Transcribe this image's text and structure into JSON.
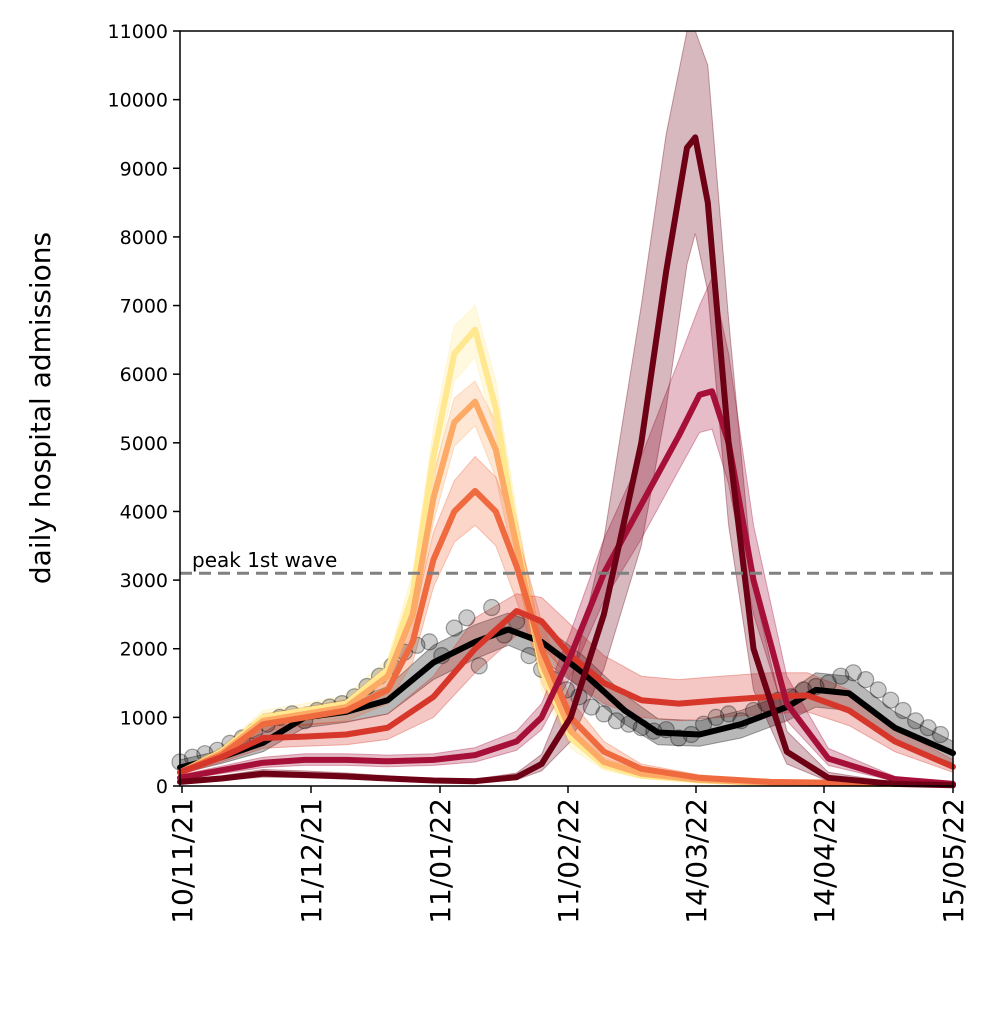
{
  "chart_data": {
    "type": "line",
    "title": "",
    "xlabel": "",
    "ylabel": "daily hospital admissions",
    "ylim": [
      0,
      11000
    ],
    "xlim": [
      "2021-11-10",
      "2022-05-15"
    ],
    "xticks": [
      "10/11/21",
      "11/12/21",
      "11/01/22",
      "11/02/22",
      "14/03/22",
      "14/04/22",
      "15/05/22"
    ],
    "yticks": [
      "0",
      "1000",
      "2000",
      "3000",
      "4000",
      "5000",
      "6000",
      "7000",
      "8000",
      "9000",
      "10000",
      "11000"
    ],
    "grid": false,
    "reference_line": {
      "label": "peak 1st wave",
      "value": 3100,
      "color": "#808080",
      "style": "dashed"
    },
    "observed_points": {
      "color": "#000000",
      "x": [
        "2021-11-10",
        "2021-11-13",
        "2021-11-16",
        "2021-11-19",
        "2021-11-22",
        "2021-11-25",
        "2021-11-28",
        "2021-12-01",
        "2021-12-04",
        "2021-12-07",
        "2021-12-10",
        "2021-12-13",
        "2021-12-16",
        "2021-12-19",
        "2021-12-22",
        "2021-12-25",
        "2021-12-28",
        "2021-12-31",
        "2022-01-03",
        "2022-01-06",
        "2022-01-09",
        "2022-01-12",
        "2022-01-15",
        "2022-01-18",
        "2022-01-21",
        "2022-01-24",
        "2022-01-27",
        "2022-01-30",
        "2022-02-02",
        "2022-02-05",
        "2022-02-08",
        "2022-02-11",
        "2022-02-14",
        "2022-02-17",
        "2022-02-20",
        "2022-02-23",
        "2022-02-26",
        "2022-03-01",
        "2022-03-04",
        "2022-03-07",
        "2022-03-10",
        "2022-03-13",
        "2022-03-16",
        "2022-03-19",
        "2022-03-22",
        "2022-03-25",
        "2022-03-28",
        "2022-03-31",
        "2022-04-03",
        "2022-04-06",
        "2022-04-09",
        "2022-04-12",
        "2022-04-15",
        "2022-04-18",
        "2022-04-21",
        "2022-04-24",
        "2022-04-27",
        "2022-04-30",
        "2022-05-03",
        "2022-05-06",
        "2022-05-09",
        "2022-05-12"
      ],
      "y": [
        350,
        420,
        470,
        520,
        620,
        700,
        800,
        900,
        1000,
        1050,
        950,
        1100,
        1150,
        1200,
        1300,
        1450,
        1600,
        1750,
        1950,
        2050,
        2100,
        1900,
        2300,
        2450,
        1750,
        2600,
        2200,
        2400,
        1900,
        1700,
        1550,
        1400,
        1300,
        1150,
        1050,
        950,
        900,
        850,
        800,
        820,
        700,
        750,
        900,
        1000,
        1050,
        950,
        1100,
        1200,
        1250,
        1300,
        1400,
        1450,
        1500,
        1600,
        1650,
        1550,
        1400,
        1250,
        1100,
        950,
        850,
        750
      ]
    },
    "series": [
      {
        "color": "#000000",
        "x": [
          "2021-11-10",
          "2021-11-20",
          "2021-11-30",
          "2021-12-10",
          "2021-12-20",
          "2021-12-30",
          "2022-01-10",
          "2022-01-20",
          "2022-01-28",
          "2022-02-05",
          "2022-02-15",
          "2022-02-25",
          "2022-03-05",
          "2022-03-15",
          "2022-03-25",
          "2022-04-05",
          "2022-04-12",
          "2022-04-20",
          "2022-05-01",
          "2022-05-15"
        ],
        "values": [
          270,
          420,
          630,
          1000,
          1080,
          1250,
          1800,
          2100,
          2280,
          2100,
          1650,
          1100,
          780,
          750,
          900,
          1150,
          1400,
          1350,
          850,
          480
        ]
      },
      {
        "color": "#ffe88f",
        "x": [
          "2021-11-10",
          "2021-11-20",
          "2021-11-30",
          "2021-12-10",
          "2021-12-20",
          "2021-12-30",
          "2022-01-05",
          "2022-01-10",
          "2022-01-15",
          "2022-01-20",
          "2022-01-25",
          "2022-01-30",
          "2022-02-05",
          "2022-02-12",
          "2022-02-20",
          "2022-03-01",
          "2022-03-15",
          "2022-04-01",
          "2022-05-15"
        ],
        "values": [
          200,
          500,
          1000,
          1100,
          1200,
          1700,
          2800,
          4800,
          6300,
          6650,
          5500,
          3600,
          1700,
          700,
          300,
          150,
          80,
          40,
          20
        ]
      },
      {
        "color": "#fcaa65",
        "x": [
          "2021-11-10",
          "2021-11-20",
          "2021-11-30",
          "2021-12-10",
          "2021-12-20",
          "2021-12-30",
          "2022-01-05",
          "2022-01-10",
          "2022-01-15",
          "2022-01-20",
          "2022-01-25",
          "2022-01-30",
          "2022-02-05",
          "2022-02-12",
          "2022-02-20",
          "2022-03-01",
          "2022-03-15",
          "2022-04-01",
          "2022-05-15"
        ],
        "values": [
          200,
          480,
          950,
          1050,
          1150,
          1600,
          2500,
          4200,
          5300,
          5600,
          4900,
          3500,
          1800,
          800,
          350,
          180,
          90,
          50,
          20
        ]
      },
      {
        "color": "#ef6a3e",
        "x": [
          "2021-11-10",
          "2021-11-20",
          "2021-11-30",
          "2021-12-10",
          "2021-12-20",
          "2021-12-30",
          "2022-01-05",
          "2022-01-10",
          "2022-01-15",
          "2022-01-20",
          "2022-01-25",
          "2022-01-30",
          "2022-02-05",
          "2022-02-12",
          "2022-02-20",
          "2022-03-01",
          "2022-03-15",
          "2022-04-01",
          "2022-05-15"
        ],
        "values": [
          200,
          450,
          900,
          1000,
          1100,
          1400,
          2100,
          3300,
          4000,
          4300,
          4000,
          3200,
          2000,
          1000,
          500,
          250,
          120,
          60,
          25
        ]
      },
      {
        "color": "#d7372b",
        "x": [
          "2021-11-10",
          "2021-11-20",
          "2021-11-30",
          "2021-12-10",
          "2021-12-20",
          "2021-12-30",
          "2022-01-10",
          "2022-01-20",
          "2022-01-30",
          "2022-02-05",
          "2022-02-12",
          "2022-02-20",
          "2022-03-01",
          "2022-03-10",
          "2022-03-20",
          "2022-04-01",
          "2022-04-10",
          "2022-04-20",
          "2022-05-01",
          "2022-05-15"
        ],
        "values": [
          200,
          420,
          700,
          720,
          750,
          850,
          1300,
          2000,
          2550,
          2400,
          1900,
          1500,
          1250,
          1200,
          1250,
          1300,
          1320,
          1100,
          650,
          280
        ]
      },
      {
        "color": "#a50f38",
        "x": [
          "2021-11-10",
          "2021-11-20",
          "2021-11-30",
          "2021-12-10",
          "2021-12-20",
          "2021-12-30",
          "2022-01-10",
          "2022-01-20",
          "2022-01-30",
          "2022-02-05",
          "2022-02-12",
          "2022-02-20",
          "2022-03-01",
          "2022-03-10",
          "2022-03-15",
          "2022-03-18",
          "2022-03-22",
          "2022-03-28",
          "2022-04-05",
          "2022-04-15",
          "2022-05-01",
          "2022-05-15"
        ],
        "values": [
          120,
          230,
          340,
          380,
          380,
          360,
          380,
          450,
          650,
          1000,
          1900,
          3100,
          4100,
          5100,
          5700,
          5750,
          5000,
          3000,
          1200,
          400,
          100,
          30
        ]
      },
      {
        "color": "#6d0014",
        "x": [
          "2021-11-10",
          "2021-11-20",
          "2021-11-30",
          "2021-12-10",
          "2021-12-20",
          "2021-12-30",
          "2022-01-10",
          "2022-01-20",
          "2022-01-30",
          "2022-02-05",
          "2022-02-12",
          "2022-02-20",
          "2022-03-01",
          "2022-03-07",
          "2022-03-12",
          "2022-03-14",
          "2022-03-17",
          "2022-03-22",
          "2022-03-28",
          "2022-04-05",
          "2022-04-15",
          "2022-05-01",
          "2022-05-15"
        ],
        "values": [
          60,
          110,
          180,
          160,
          140,
          110,
          80,
          70,
          130,
          320,
          1000,
          2500,
          5000,
          7500,
          9300,
          9450,
          8500,
          5000,
          2000,
          500,
          120,
          30,
          10
        ]
      }
    ],
    "bands": [
      {
        "color": "#000000",
        "x": [
          "2021-11-10",
          "2021-11-20",
          "2021-11-30",
          "2021-12-10",
          "2021-12-20",
          "2021-12-30",
          "2022-01-10",
          "2022-01-20",
          "2022-01-28",
          "2022-02-05",
          "2022-02-15",
          "2022-02-25",
          "2022-03-05",
          "2022-03-15",
          "2022-03-25",
          "2022-04-05",
          "2022-04-12",
          "2022-04-20",
          "2022-05-01",
          "2022-05-15"
        ],
        "lower": [
          180,
          330,
          500,
          850,
          930,
          1050,
          1550,
          1850,
          2050,
          1850,
          1400,
          900,
          600,
          580,
          700,
          950,
          1150,
          1100,
          650,
          330
        ],
        "upper": [
          380,
          520,
          770,
          1150,
          1230,
          1450,
          2050,
          2350,
          2520,
          2350,
          1900,
          1330,
          980,
          950,
          1100,
          1350,
          1650,
          1600,
          1080,
          650
        ]
      },
      {
        "color": "#ffe88f",
        "x": [
          "2021-11-10",
          "2021-11-20",
          "2021-11-30",
          "2021-12-10",
          "2021-12-20",
          "2021-12-30",
          "2022-01-05",
          "2022-01-10",
          "2022-01-15",
          "2022-01-20",
          "2022-01-25",
          "2022-01-30",
          "2022-02-05",
          "2022-02-12",
          "2022-02-20",
          "2022-03-01",
          "2022-03-15",
          "2022-04-01",
          "2022-05-15"
        ],
        "lower": [
          170,
          430,
          900,
          1000,
          1100,
          1550,
          2500,
          4400,
          5900,
          6250,
          5100,
          3200,
          1400,
          550,
          230,
          110,
          60,
          30,
          15
        ],
        "upper": [
          240,
          570,
          1100,
          1200,
          1320,
          1850,
          3100,
          5200,
          6700,
          7000,
          5900,
          4000,
          2000,
          850,
          370,
          190,
          100,
          50,
          25
        ]
      },
      {
        "color": "#fcaa65",
        "x": [
          "2021-11-10",
          "2021-11-20",
          "2021-11-30",
          "2021-12-10",
          "2021-12-20",
          "2021-12-30",
          "2022-01-05",
          "2022-01-10",
          "2022-01-15",
          "2022-01-20",
          "2022-01-25",
          "2022-01-30",
          "2022-02-05",
          "2022-02-12",
          "2022-02-20",
          "2022-03-01",
          "2022-03-15",
          "2022-04-01",
          "2022-05-15"
        ],
        "lower": [
          170,
          410,
          860,
          950,
          1050,
          1450,
          2250,
          3850,
          4950,
          5250,
          4500,
          3100,
          1500,
          650,
          280,
          140,
          70,
          40,
          15
        ],
        "upper": [
          240,
          560,
          1050,
          1150,
          1260,
          1760,
          2750,
          4550,
          5650,
          5900,
          5300,
          3900,
          2100,
          950,
          420,
          220,
          110,
          60,
          25
        ]
      },
      {
        "color": "#ef6a3e",
        "x": [
          "2021-11-10",
          "2021-11-20",
          "2021-11-30",
          "2021-12-10",
          "2021-12-20",
          "2021-12-30",
          "2022-01-05",
          "2022-01-10",
          "2022-01-15",
          "2022-01-20",
          "2022-01-25",
          "2022-01-30",
          "2022-02-05",
          "2022-02-12",
          "2022-02-20",
          "2022-03-01",
          "2022-03-15",
          "2022-04-01",
          "2022-05-15"
        ],
        "lower": [
          160,
          380,
          800,
          880,
          950,
          1200,
          1800,
          2900,
          3550,
          3800,
          3500,
          2700,
          1650,
          800,
          380,
          190,
          90,
          45,
          20
        ],
        "upper": [
          250,
          520,
          1000,
          1120,
          1250,
          1600,
          2400,
          3700,
          4450,
          4800,
          4500,
          3700,
          2400,
          1250,
          650,
          320,
          160,
          80,
          35
        ]
      },
      {
        "color": "#d7372b",
        "x": [
          "2021-11-10",
          "2021-11-20",
          "2021-11-30",
          "2021-12-10",
          "2021-12-20",
          "2021-12-30",
          "2022-01-10",
          "2022-01-20",
          "2022-01-30",
          "2022-02-05",
          "2022-02-12",
          "2022-02-20",
          "2022-03-01",
          "2022-03-10",
          "2022-03-20",
          "2022-04-01",
          "2022-04-10",
          "2022-04-20",
          "2022-05-01",
          "2022-05-15"
        ],
        "lower": [
          160,
          350,
          550,
          580,
          600,
          680,
          1000,
          1650,
          2200,
          2050,
          1550,
          1200,
          1000,
          950,
          1000,
          1050,
          1080,
          880,
          500,
          200
        ],
        "upper": [
          250,
          500,
          880,
          900,
          940,
          1050,
          1600,
          2450,
          2800,
          2750,
          2350,
          1900,
          1600,
          1550,
          1600,
          1650,
          1650,
          1400,
          850,
          380
        ]
      },
      {
        "color": "#a50f38",
        "x": [
          "2021-11-10",
          "2021-11-20",
          "2021-11-30",
          "2021-12-10",
          "2021-12-20",
          "2021-12-30",
          "2022-01-10",
          "2022-01-20",
          "2022-01-30",
          "2022-02-05",
          "2022-02-12",
          "2022-02-20",
          "2022-03-01",
          "2022-03-10",
          "2022-03-15",
          "2022-03-18",
          "2022-03-22",
          "2022-03-28",
          "2022-04-05",
          "2022-04-15",
          "2022-05-01",
          "2022-05-15"
        ],
        "lower": [
          90,
          180,
          270,
          300,
          300,
          280,
          300,
          350,
          520,
          820,
          1600,
          2700,
          3600,
          4600,
          5150,
          5200,
          4400,
          2500,
          950,
          300,
          70,
          20
        ],
        "upper": [
          160,
          290,
          420,
          470,
          470,
          450,
          470,
          560,
          800,
          1200,
          2250,
          3600,
          4800,
          6200,
          7000,
          7400,
          6300,
          3800,
          1600,
          550,
          140,
          40
        ]
      },
      {
        "color": "#6d0014",
        "x": [
          "2021-11-10",
          "2021-11-20",
          "2021-11-30",
          "2021-12-10",
          "2021-12-20",
          "2021-12-30",
          "2022-01-10",
          "2022-01-20",
          "2022-01-30",
          "2022-02-05",
          "2022-02-12",
          "2022-02-20",
          "2022-03-01",
          "2022-03-07",
          "2022-03-12",
          "2022-03-14",
          "2022-03-17",
          "2022-03-22",
          "2022-03-28",
          "2022-04-05",
          "2022-04-15",
          "2022-05-01",
          "2022-05-15"
        ],
        "lower": [
          40,
          80,
          130,
          120,
          100,
          80,
          55,
          50,
          90,
          220,
          650,
          1700,
          3500,
          5500,
          7600,
          8050,
          7200,
          3800,
          1400,
          320,
          70,
          15,
          5
        ],
        "upper": [
          90,
          150,
          240,
          220,
          190,
          150,
          110,
          100,
          190,
          460,
          1500,
          3600,
          7000,
          9500,
          11200,
          11500,
          10500,
          6800,
          2900,
          800,
          200,
          50,
          15
        ]
      }
    ]
  }
}
